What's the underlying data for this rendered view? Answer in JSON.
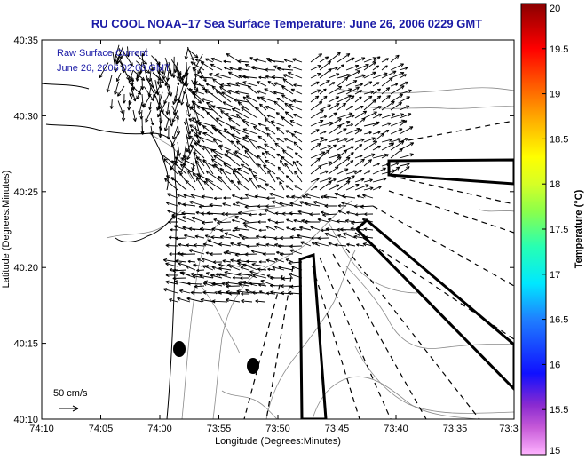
{
  "title": "RU COOL   NOAA–17  Sea Surface Temperature:  June 26, 2006 0229 GMT",
  "legend": {
    "line1": "Raw Surface Current",
    "line2": "June 26, 2006 02:00 GMT"
  },
  "axes": {
    "xlabel": "Longitude (Degrees:Minutes)",
    "ylabel": "Latitude (Degrees:Minutes)",
    "xticks": [
      "74:10",
      "74:05",
      "74:00",
      "73:55",
      "73:50",
      "73:45",
      "73:40",
      "73:35",
      "73:3"
    ],
    "yticks": [
      "40:35",
      "40:30",
      "40:25",
      "40:20",
      "40:15",
      "40:10"
    ]
  },
  "colorbar": {
    "label": "Temperature (°C)",
    "ticks": [
      "20",
      "19.5",
      "19",
      "18.5",
      "18",
      "17.5",
      "17",
      "16.5",
      "16",
      "15.5",
      "15"
    ]
  },
  "scale_arrow": {
    "label": "50 cm/s"
  },
  "colors": {
    "title": "#1a1aa6",
    "coast": "#000000",
    "bathymetry": "#8a8a8a",
    "arrows": "#000000"
  }
}
